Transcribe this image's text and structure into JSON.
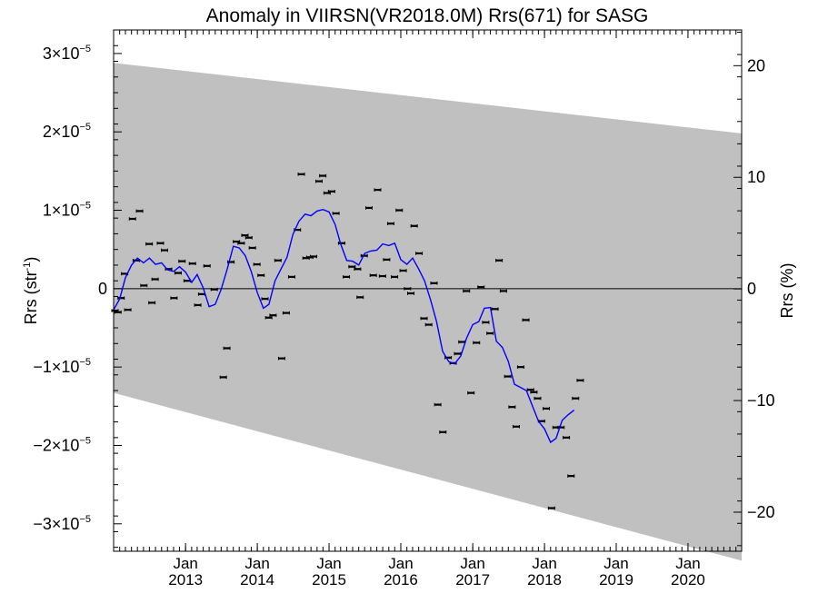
{
  "chart_data": {
    "type": "scatter",
    "title": "Anomaly in VIIRSN(VR2018.0M) Rrs(671) for SASG",
    "ylabel_left": "Rrs (str",
    "ylabel_left_sup": "-1",
    "ylabel_left_close": ")",
    "ylabel_right": "Rrs (%)",
    "x_range": [
      "2012-01-01",
      "2020-09-30"
    ],
    "y_left_range": [
      -3.35e-05,
      3.3e-05
    ],
    "y_right_range": [
      -23.5,
      23.2
    ],
    "y_left_ticks": [
      {
        "value": 3e-05,
        "mant": "3×10",
        "exp": "−5"
      },
      {
        "value": 2e-05,
        "mant": "2×10",
        "exp": "−5"
      },
      {
        "value": 1e-05,
        "mant": "1×10",
        "exp": "−5"
      },
      {
        "value": 0,
        "mant": "0",
        "exp": ""
      },
      {
        "value": -1e-05,
        "mant": "−1×10",
        "exp": "−5"
      },
      {
        "value": -2e-05,
        "mant": "−2×10",
        "exp": "−5"
      },
      {
        "value": -3e-05,
        "mant": "−3×10",
        "exp": "−5"
      }
    ],
    "y_right_ticks": [
      {
        "value": 20,
        "label": "20"
      },
      {
        "value": 10,
        "label": "10"
      },
      {
        "value": 0,
        "label": "0"
      },
      {
        "value": -10,
        "label": "−10"
      },
      {
        "value": -20,
        "label": "−20"
      }
    ],
    "x_ticks": [
      {
        "date": "2013-01-01",
        "month": "Jan",
        "year": "2013"
      },
      {
        "date": "2014-01-01",
        "month": "Jan",
        "year": "2014"
      },
      {
        "date": "2015-01-01",
        "month": "Jan",
        "year": "2015"
      },
      {
        "date": "2016-01-01",
        "month": "Jan",
        "year": "2016"
      },
      {
        "date": "2017-01-01",
        "month": "Jan",
        "year": "2017"
      },
      {
        "date": "2018-01-01",
        "month": "Jan",
        "year": "2018"
      },
      {
        "date": "2019-01-01",
        "month": "Jan",
        "year": "2019"
      },
      {
        "date": "2020-01-01",
        "month": "Jan",
        "year": "2020"
      }
    ],
    "uncertainty_band": {
      "color": "#c0c0c0",
      "start": {
        "date": "2012-01-01",
        "upper": 2.88e-05,
        "lower": -1.33e-05
      },
      "end": {
        "date": "2020-09-30",
        "upper": 1.98e-05,
        "lower": -3.47e-05
      }
    },
    "zero_line": 0,
    "series": [
      {
        "kind": "points",
        "color": "#000000",
        "points": [
          {
            "x": "2012-01-08",
            "y": -2.8e-06
          },
          {
            "x": "2012-01-23",
            "y": -3e-06
          },
          {
            "x": "2012-02-08",
            "y": -1.2e-06
          },
          {
            "x": "2012-02-26",
            "y": 1.9e-06
          },
          {
            "x": "2012-03-13",
            "y": -2.7e-06
          },
          {
            "x": "2012-04-06",
            "y": 8.9e-06
          },
          {
            "x": "2012-04-25",
            "y": 3.6e-06
          },
          {
            "x": "2012-05-12",
            "y": 9.9e-06
          },
          {
            "x": "2012-06-03",
            "y": 4e-07
          },
          {
            "x": "2012-06-30",
            "y": 5.7e-06
          },
          {
            "x": "2012-07-14",
            "y": -1.8e-06
          },
          {
            "x": "2012-07-30",
            "y": 1.2e-06
          },
          {
            "x": "2012-08-26",
            "y": 5.8e-06
          },
          {
            "x": "2012-09-16",
            "y": 4.9e-06
          },
          {
            "x": "2012-10-07",
            "y": 2.5e-06
          },
          {
            "x": "2012-11-03",
            "y": -1.2e-06
          },
          {
            "x": "2012-11-24",
            "y": 2e-06
          },
          {
            "x": "2012-12-14",
            "y": 3.5e-06
          },
          {
            "x": "2013-01-09",
            "y": 1e-06
          },
          {
            "x": "2013-02-05",
            "y": 3.2e-06
          },
          {
            "x": "2013-03-04",
            "y": -2.1e-06
          },
          {
            "x": "2013-03-24",
            "y": -7e-07
          },
          {
            "x": "2013-04-20",
            "y": 2.9e-06
          },
          {
            "x": "2013-05-27",
            "y": -1e-07
          },
          {
            "x": "2013-07-12",
            "y": -1.13e-05
          },
          {
            "x": "2013-07-30",
            "y": -7.6e-06
          },
          {
            "x": "2013-08-20",
            "y": 3.4e-06
          },
          {
            "x": "2013-09-17",
            "y": 6e-06
          },
          {
            "x": "2013-10-11",
            "y": 5.8e-06
          },
          {
            "x": "2013-10-30",
            "y": 6.8e-06
          },
          {
            "x": "2013-11-19",
            "y": 6.5e-06
          },
          {
            "x": "2013-12-07",
            "y": 5.2e-06
          },
          {
            "x": "2013-12-30",
            "y": 3.1e-06
          },
          {
            "x": "2014-01-20",
            "y": 1.7e-06
          },
          {
            "x": "2014-02-09",
            "y": -1.3e-06
          },
          {
            "x": "2014-02-28",
            "y": -3.7e-06
          },
          {
            "x": "2014-03-22",
            "y": -3.4e-06
          },
          {
            "x": "2014-04-16",
            "y": 3.6e-06
          },
          {
            "x": "2014-05-05",
            "y": -8.9e-06
          },
          {
            "x": "2014-05-28",
            "y": -3.1e-06
          },
          {
            "x": "2014-06-25",
            "y": 1.5e-06
          },
          {
            "x": "2014-07-24",
            "y": 7.5e-06
          },
          {
            "x": "2014-08-13",
            "y": 1.46e-05
          },
          {
            "x": "2014-09-06",
            "y": 3.9e-06
          },
          {
            "x": "2014-09-25",
            "y": 4e-06
          },
          {
            "x": "2014-10-14",
            "y": 4.1e-06
          },
          {
            "x": "2014-11-11",
            "y": 1.37e-05
          },
          {
            "x": "2014-11-30",
            "y": 1.44e-05
          },
          {
            "x": "2014-12-22",
            "y": 1.22e-05
          },
          {
            "x": "2015-01-14",
            "y": 1.24e-05
          },
          {
            "x": "2015-02-05",
            "y": 9.6e-06
          },
          {
            "x": "2015-03-06",
            "y": 5.8e-06
          },
          {
            "x": "2015-03-30",
            "y": 1.5e-06
          },
          {
            "x": "2015-04-28",
            "y": 2.8e-06
          },
          {
            "x": "2015-05-26",
            "y": 2.5e-06
          },
          {
            "x": "2015-06-08",
            "y": -1.1e-06
          },
          {
            "x": "2015-06-29",
            "y": 4.2e-06
          },
          {
            "x": "2015-07-23",
            "y": 1.03e-05
          },
          {
            "x": "2015-08-14",
            "y": 1.7e-06
          },
          {
            "x": "2015-09-05",
            "y": 1.26e-05
          },
          {
            "x": "2015-09-30",
            "y": 1.6e-06
          },
          {
            "x": "2015-10-21",
            "y": 3.7e-06
          },
          {
            "x": "2015-11-11",
            "y": 8.3e-06
          },
          {
            "x": "2015-11-30",
            "y": 1.5e-06
          },
          {
            "x": "2015-12-24",
            "y": 1e-05
          },
          {
            "x": "2016-01-13",
            "y": 2.3e-06
          },
          {
            "x": "2016-02-04",
            "y": 0.0
          },
          {
            "x": "2016-02-21",
            "y": -6e-07
          },
          {
            "x": "2016-03-09",
            "y": 8e-06
          },
          {
            "x": "2016-04-03",
            "y": 4.5e-06
          },
          {
            "x": "2016-04-28",
            "y": -3.8e-06
          },
          {
            "x": "2016-05-22",
            "y": -4.6e-06
          },
          {
            "x": "2016-06-18",
            "y": 7e-07
          },
          {
            "x": "2016-07-07",
            "y": -1.48e-05
          },
          {
            "x": "2016-08-02",
            "y": -1.83e-05
          },
          {
            "x": "2016-08-29",
            "y": -8.8e-06
          },
          {
            "x": "2016-09-23",
            "y": -9.5e-06
          },
          {
            "x": "2016-10-16",
            "y": -8.3e-06
          },
          {
            "x": "2016-11-07",
            "y": -6.8e-06
          },
          {
            "x": "2016-11-30",
            "y": -3e-07
          },
          {
            "x": "2016-12-23",
            "y": -1.33e-05
          },
          {
            "x": "2017-01-20",
            "y": -6.9e-06
          },
          {
            "x": "2017-02-12",
            "y": 2e-07
          },
          {
            "x": "2017-03-08",
            "y": -4.3e-06
          },
          {
            "x": "2017-03-30",
            "y": -5.7e-06
          },
          {
            "x": "2017-04-24",
            "y": -2.6e-06
          },
          {
            "x": "2017-05-15",
            "y": 3.6e-06
          },
          {
            "x": "2017-06-06",
            "y": -3e-07
          },
          {
            "x": "2017-06-28",
            "y": -1.12e-05
          },
          {
            "x": "2017-07-20",
            "y": -1.51e-05
          },
          {
            "x": "2017-08-10",
            "y": -1.76e-05
          },
          {
            "x": "2017-09-02",
            "y": -1e-05
          },
          {
            "x": "2017-09-28",
            "y": -4e-06
          },
          {
            "x": "2017-10-22",
            "y": -1.29e-05
          },
          {
            "x": "2017-11-08",
            "y": -1.32e-05
          },
          {
            "x": "2017-11-27",
            "y": -1.4e-05
          },
          {
            "x": "2017-12-17",
            "y": -1.69e-05
          },
          {
            "x": "2018-01-10",
            "y": -1.53e-05
          },
          {
            "x": "2018-02-06",
            "y": -2.8e-05
          },
          {
            "x": "2018-03-01",
            "y": -1.77e-05
          },
          {
            "x": "2018-03-26",
            "y": -1.77e-05
          },
          {
            "x": "2018-04-22",
            "y": -1.9e-05
          },
          {
            "x": "2018-05-16",
            "y": -2.39e-05
          },
          {
            "x": "2018-06-08",
            "y": -1.4e-05
          },
          {
            "x": "2018-07-02",
            "y": -1.17e-05
          }
        ]
      },
      {
        "kind": "line",
        "color": "#0000ff",
        "points": [
          {
            "x": "2012-01-01",
            "y": -2.7e-06
          },
          {
            "x": "2012-02-01",
            "y": -1.3e-06
          },
          {
            "x": "2012-03-01",
            "y": 1.4e-06
          },
          {
            "x": "2012-04-01",
            "y": 3e-06
          },
          {
            "x": "2012-05-01",
            "y": 3.9e-06
          },
          {
            "x": "2012-06-01",
            "y": 3.3e-06
          },
          {
            "x": "2012-07-01",
            "y": 3.9e-06
          },
          {
            "x": "2012-08-01",
            "y": 3.1e-06
          },
          {
            "x": "2012-09-01",
            "y": 3.3e-06
          },
          {
            "x": "2012-10-01",
            "y": 2.4e-06
          },
          {
            "x": "2012-11-01",
            "y": 2.2e-06
          },
          {
            "x": "2012-12-01",
            "y": 2.8e-06
          },
          {
            "x": "2013-01-01",
            "y": 2.1e-06
          },
          {
            "x": "2013-02-01",
            "y": 8e-07
          },
          {
            "x": "2013-03-01",
            "y": 1.8e-06
          },
          {
            "x": "2013-04-01",
            "y": 1e-07
          },
          {
            "x": "2013-05-01",
            "y": -2.3e-06
          },
          {
            "x": "2013-06-01",
            "y": -2e-06
          },
          {
            "x": "2013-07-01",
            "y": -1e-07
          },
          {
            "x": "2013-08-01",
            "y": 2.5e-06
          },
          {
            "x": "2013-09-01",
            "y": 5.4e-06
          },
          {
            "x": "2013-10-01",
            "y": 5.2e-06
          },
          {
            "x": "2013-11-01",
            "y": 4.2e-06
          },
          {
            "x": "2013-12-01",
            "y": 2.2e-06
          },
          {
            "x": "2014-01-01",
            "y": -5e-07
          },
          {
            "x": "2014-02-01",
            "y": -2.5e-06
          },
          {
            "x": "2014-03-01",
            "y": -2e-06
          },
          {
            "x": "2014-04-01",
            "y": 1e-06
          },
          {
            "x": "2014-05-01",
            "y": 2.5e-06
          },
          {
            "x": "2014-06-01",
            "y": 4e-06
          },
          {
            "x": "2014-07-01",
            "y": 6.9e-06
          },
          {
            "x": "2014-08-01",
            "y": 8.6e-06
          },
          {
            "x": "2014-09-01",
            "y": 9.5e-06
          },
          {
            "x": "2014-10-01",
            "y": 9.3e-06
          },
          {
            "x": "2014-11-01",
            "y": 9.9e-06
          },
          {
            "x": "2014-12-01",
            "y": 1.01e-05
          },
          {
            "x": "2015-01-01",
            "y": 9.8e-06
          },
          {
            "x": "2015-02-01",
            "y": 8.2e-06
          },
          {
            "x": "2015-03-01",
            "y": 5.7e-06
          },
          {
            "x": "2015-04-01",
            "y": 3.6e-06
          },
          {
            "x": "2015-05-01",
            "y": 3.5e-06
          },
          {
            "x": "2015-06-01",
            "y": 3e-06
          },
          {
            "x": "2015-07-01",
            "y": 4.5e-06
          },
          {
            "x": "2015-08-01",
            "y": 4.8e-06
          },
          {
            "x": "2015-09-01",
            "y": 4.9e-06
          },
          {
            "x": "2015-10-01",
            "y": 5.7e-06
          },
          {
            "x": "2015-11-01",
            "y": 5.5e-06
          },
          {
            "x": "2015-12-01",
            "y": 5.8e-06
          },
          {
            "x": "2016-01-01",
            "y": 3.7e-06
          },
          {
            "x": "2016-02-01",
            "y": 3.1e-06
          },
          {
            "x": "2016-03-01",
            "y": 3.9e-06
          },
          {
            "x": "2016-04-01",
            "y": 2.5e-06
          },
          {
            "x": "2016-05-01",
            "y": 1e-06
          },
          {
            "x": "2016-06-01",
            "y": -1.5e-06
          },
          {
            "x": "2016-07-01",
            "y": -4.2e-06
          },
          {
            "x": "2016-08-01",
            "y": -8e-06
          },
          {
            "x": "2016-09-01",
            "y": -9.3e-06
          },
          {
            "x": "2016-10-01",
            "y": -9.6e-06
          },
          {
            "x": "2016-11-01",
            "y": -8.6e-06
          },
          {
            "x": "2016-12-01",
            "y": -6.3e-06
          },
          {
            "x": "2017-01-01",
            "y": -4.6e-06
          },
          {
            "x": "2017-02-01",
            "y": -4.2e-06
          },
          {
            "x": "2017-03-01",
            "y": -2.5e-06
          },
          {
            "x": "2017-04-01",
            "y": -2.4e-06
          },
          {
            "x": "2017-05-01",
            "y": -6.7e-06
          },
          {
            "x": "2017-06-01",
            "y": -7.5e-06
          },
          {
            "x": "2017-07-01",
            "y": -9.3e-06
          },
          {
            "x": "2017-08-01",
            "y": -1.22e-05
          },
          {
            "x": "2017-09-01",
            "y": -1.26e-05
          },
          {
            "x": "2017-10-01",
            "y": -1.3e-05
          },
          {
            "x": "2017-11-01",
            "y": -1.5e-05
          },
          {
            "x": "2017-12-01",
            "y": -1.69e-05
          },
          {
            "x": "2018-01-01",
            "y": -1.79e-05
          },
          {
            "x": "2018-02-01",
            "y": -1.96e-05
          },
          {
            "x": "2018-03-01",
            "y": -1.91e-05
          },
          {
            "x": "2018-04-01",
            "y": -1.68e-05
          },
          {
            "x": "2018-05-01",
            "y": -1.61e-05
          },
          {
            "x": "2018-06-01",
            "y": -1.55e-05
          }
        ]
      }
    ]
  }
}
